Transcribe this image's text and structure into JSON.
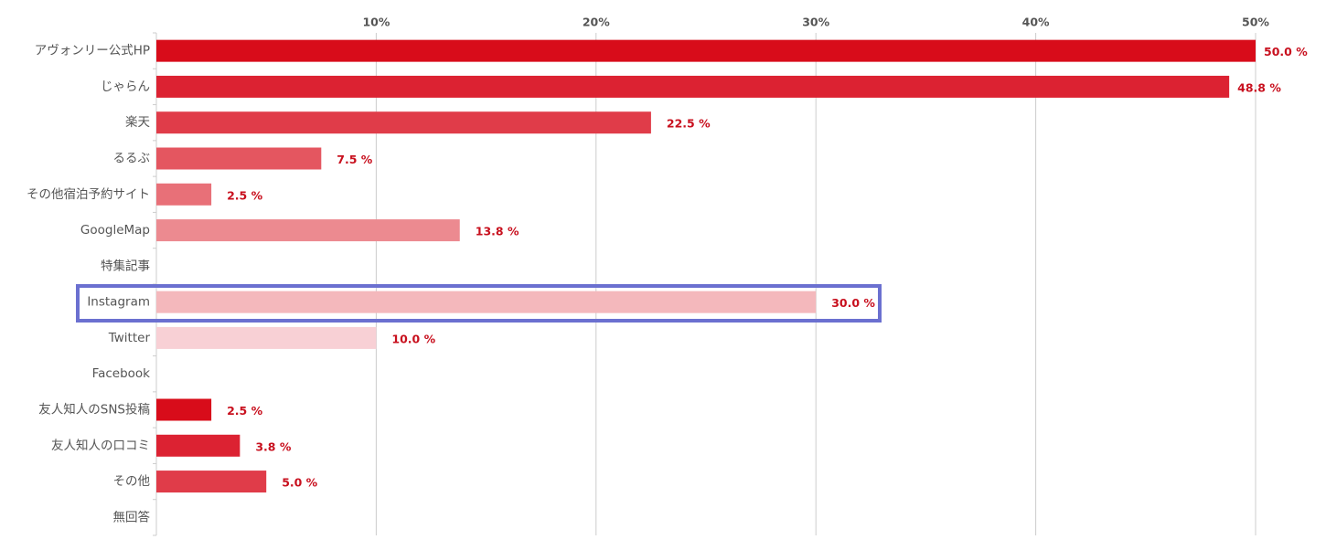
{
  "chart_data": {
    "type": "bar",
    "orientation": "horizontal",
    "categories": [
      "アヴォンリー公式HP",
      "じゃらん",
      "楽天",
      "るるぶ",
      "その他宿泊予約サイト",
      "GoogleMap",
      "特集記事",
      "Instagram",
      "Twitter",
      "Facebook",
      "友人知人のSNS投稿",
      "友人知人の口コミ",
      "その他",
      "無回答"
    ],
    "values": [
      50.0,
      48.8,
      22.5,
      7.5,
      2.5,
      13.8,
      null,
      30.0,
      10.0,
      null,
      2.5,
      3.8,
      5.0,
      null
    ],
    "value_labels": [
      "50.0 %",
      "48.8 %",
      "22.5 %",
      "7.5 %",
      "2.5 %",
      "13.8 %",
      null,
      "30.0 %",
      "10.0 %",
      null,
      "2.5 %",
      "3.8 %",
      "5.0 %",
      null
    ],
    "colors": [
      "#d80c1a",
      "#dc2232",
      "#e03c49",
      "#e45660",
      "#e87078",
      "#ec8a90",
      null,
      "#f4b8bc",
      "#f8d0d5",
      null,
      "#d80c1a",
      "#dc2232",
      "#e03c49",
      null
    ],
    "xlim": [
      0,
      50
    ],
    "xticks": [
      {
        "value": 10,
        "label": "10%"
      },
      {
        "value": 20,
        "label": "20%"
      },
      {
        "value": 30,
        "label": "30%"
      },
      {
        "value": 40,
        "label": "40%"
      },
      {
        "value": 50,
        "label": "50%"
      }
    ],
    "grid": true
  }
}
